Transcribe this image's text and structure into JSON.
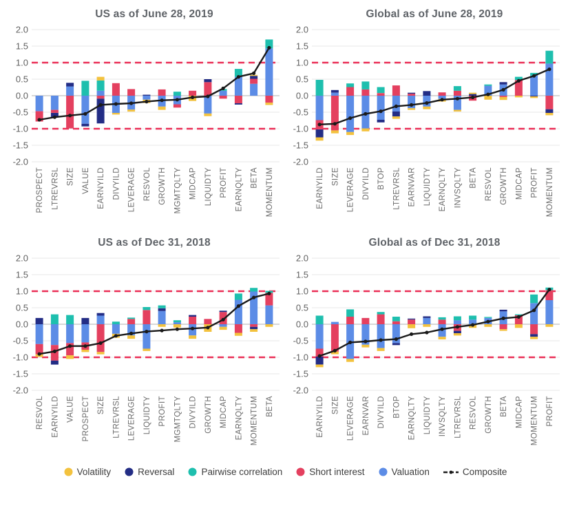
{
  "figure": {
    "background": "#ffffff",
    "grid_color": "#e7e7e7",
    "zero_line_color": "#b0b0b0",
    "ref_line_color": "#ea2d55",
    "title_color": "#5f6368"
  },
  "series_defs": [
    {
      "key": "volatility",
      "name": "Volatility",
      "color": "#f3c23e"
    },
    {
      "key": "reversal",
      "name": "Reversal",
      "color": "#232d85"
    },
    {
      "key": "pairwise_correlation",
      "name": "Pairwise correlation",
      "color": "#1ebfae"
    },
    {
      "key": "short_interest",
      "name": "Short interest",
      "color": "#e4405f"
    },
    {
      "key": "valuation",
      "name": "Valuation",
      "color": "#5c8ce6"
    }
  ],
  "composite_def": {
    "key": "composite",
    "name": "Composite",
    "color": "#1a1a1a",
    "style": "line-with-dots"
  },
  "stack_order": [
    "valuation",
    "short_interest",
    "reversal",
    "pairwise_correlation",
    "volatility"
  ],
  "chart_data": [
    {
      "type": "bar",
      "subtype": "stacked-bars-with-composite-line",
      "title": "US as of June 28, 2019",
      "ylim": [
        -2,
        2
      ],
      "yticks": [
        2,
        1.5,
        1,
        0.5,
        0,
        -0.5,
        -1,
        -1.5,
        -2
      ],
      "ref_lines": [
        1,
        -1
      ],
      "grid": true,
      "categories": [
        "PROSPECT",
        "LTREVRSL",
        "SIZE",
        "VALUE",
        "EARNYILD",
        "DIVYILD",
        "LEVERAGE",
        "RESVOL",
        "GROWTH",
        "MGMTQLTY",
        "MIDCAP",
        "LIQUIDTY",
        "PROFIT",
        "EARNQLTY",
        "BETA",
        "MOMENTUM"
      ],
      "values": {
        "volatility": [
          0,
          0,
          0,
          0,
          0.11,
          -0.05,
          -0.06,
          -0.1,
          -0.1,
          0,
          -0.16,
          -0.08,
          0,
          0,
          0.03,
          -0.07
        ],
        "reversal": [
          0,
          -0.12,
          0.11,
          -0.08,
          -0.75,
          0,
          0,
          0.03,
          0,
          0,
          0,
          0.09,
          0,
          -0.04,
          0.09,
          0
        ],
        "pairwise_correlation": [
          0,
          0,
          0,
          0.45,
          0.31,
          0,
          0,
          0,
          0,
          0.12,
          0,
          0,
          0.05,
          0.24,
          0,
          0.27
        ],
        "short_interest": [
          -0.31,
          -0.09,
          -0.99,
          0,
          -0.09,
          0.38,
          0.2,
          0,
          0.19,
          -0.1,
          0.15,
          0.41,
          -0.09,
          -0.23,
          0.15,
          -0.21
        ],
        "valuation": [
          -0.47,
          -0.43,
          0.28,
          -0.85,
          0.15,
          -0.52,
          -0.42,
          -0.12,
          -0.33,
          -0.26,
          0,
          -0.54,
          0.15,
          0.57,
          0.36,
          1.43
        ]
      },
      "composite": [
        -0.73,
        -0.65,
        -0.6,
        -0.55,
        -0.28,
        -0.25,
        -0.23,
        -0.18,
        -0.14,
        -0.12,
        -0.05,
        -0.02,
        0.22,
        0.57,
        0.68,
        1.45
      ]
    },
    {
      "type": "bar",
      "subtype": "stacked-bars-with-composite-line",
      "title": "Global as of June 28, 2019",
      "ylim": [
        -2,
        2
      ],
      "yticks": [
        2,
        1.5,
        1,
        0.5,
        0,
        -0.5,
        -1,
        -1.5,
        -2
      ],
      "ref_lines": [
        1,
        -1
      ],
      "grid": true,
      "categories": [
        "EARNYILD",
        "SIZE",
        "LEVERAGE",
        "DIVYILD",
        "BTOP",
        "LTREVRSL",
        "EARNVAR",
        "LIQUIDTY",
        "EARNQLTY",
        "INVSQLTY",
        "BETA",
        "RESVOL",
        "GROWTH",
        "MIDCAP",
        "PROFIT",
        "MOMENTUM"
      ],
      "values": {
        "volatility": [
          -0.1,
          -0.09,
          -0.09,
          -0.09,
          0,
          -0.07,
          -0.05,
          -0.08,
          -0.08,
          -0.05,
          0.04,
          -0.12,
          -0.09,
          -0.05,
          -0.05,
          -0.07
        ],
        "reversal": [
          -0.24,
          0.08,
          0,
          0,
          -0.08,
          -0.15,
          0.03,
          0.14,
          0,
          0,
          0.05,
          0,
          0.07,
          0,
          -0.02,
          -0.11
        ],
        "pairwise_correlation": [
          0.48,
          0,
          0.11,
          0.24,
          0.18,
          0,
          0,
          0,
          0,
          0.14,
          0,
          0.04,
          0,
          0.1,
          0.08,
          0.39
        ],
        "short_interest": [
          -0.28,
          -1.05,
          0.26,
          0.19,
          0.08,
          0.31,
          0.06,
          0,
          0.1,
          0.15,
          -0.15,
          0,
          -0.04,
          0.47,
          0,
          -0.41
        ],
        "valuation": [
          -0.74,
          0.09,
          -1.1,
          -0.99,
          -0.73,
          -0.48,
          -0.38,
          -0.33,
          -0.1,
          -0.43,
          0,
          0.3,
          0.34,
          0,
          0.61,
          0.97
        ]
      },
      "composite": [
        -0.87,
        -0.85,
        -0.68,
        -0.55,
        -0.47,
        -0.32,
        -0.28,
        -0.22,
        -0.12,
        -0.09,
        -0.05,
        0.04,
        0.18,
        0.45,
        0.6,
        0.8
      ]
    },
    {
      "type": "bar",
      "subtype": "stacked-bars-with-composite-line",
      "title": "US as of Dec 31, 2018",
      "ylim": [
        -2,
        2
      ],
      "yticks": [
        2,
        1.5,
        1,
        0.5,
        0,
        -0.5,
        -1,
        -1.5,
        -2
      ],
      "ref_lines": [
        1,
        -1
      ],
      "grid": true,
      "categories": [
        "RESVOL",
        "EARNYILD",
        "VALUE",
        "PROSPECT",
        "SIZE",
        "LTREVRSL",
        "LEVERAGE",
        "LIQUIDTY",
        "PROFIT",
        "MGMTQLTY",
        "DIVYILD",
        "GROWTH",
        "MIDCAP",
        "EARNQLTY",
        "MOMENTUM",
        "BETA"
      ],
      "values": {
        "volatility": [
          -0.08,
          0,
          -0.11,
          -0.07,
          -0.07,
          -0.12,
          -0.1,
          -0.07,
          -0.08,
          -0.1,
          -0.1,
          -0.23,
          -0.09,
          -0.09,
          -0.08,
          -0.08
        ],
        "reversal": [
          0.19,
          -0.12,
          0,
          0.19,
          0.08,
          0,
          0,
          0,
          0.08,
          0,
          0.05,
          0,
          0.04,
          0,
          -0.07,
          0
        ],
        "pairwise_correlation": [
          0,
          0.3,
          0.28,
          0,
          0,
          0.08,
          0.04,
          0.09,
          0.09,
          0.06,
          0,
          0,
          0,
          0.19,
          0.11,
          0.06
        ],
        "short_interest": [
          -0.31,
          -0.47,
          -0.37,
          -0.22,
          -0.84,
          0,
          0.16,
          0.43,
          0,
          0,
          0.23,
          0.16,
          0.37,
          -0.26,
          -0.08,
          0.38
        ],
        "valuation": [
          -0.6,
          -0.63,
          -0.57,
          -0.55,
          0.26,
          -0.29,
          -0.34,
          -0.74,
          0.4,
          0.06,
          -0.34,
          0,
          -0.08,
          0.74,
          0.99,
          0.57
        ]
      },
      "composite": [
        -0.9,
        -0.82,
        -0.66,
        -0.66,
        -0.57,
        -0.35,
        -0.28,
        -0.22,
        -0.19,
        -0.15,
        -0.13,
        -0.1,
        0.14,
        0.55,
        0.81,
        0.93
      ]
    },
    {
      "type": "bar",
      "subtype": "stacked-bars-with-composite-line",
      "title": "Global as of Dec 31, 2018",
      "ylim": [
        -2,
        2
      ],
      "yticks": [
        2,
        1.5,
        1,
        0.5,
        0,
        -0.5,
        -1,
        -1.5,
        -2
      ],
      "ref_lines": [
        1,
        -1
      ],
      "grid": true,
      "categories": [
        "EARNYILD",
        "SIZE",
        "LEVERAGE",
        "EARNVAR",
        "DIVYILD",
        "BTOP",
        "EARNQLTY",
        "LIQUIDTY",
        "INVSQLTY",
        "LTREVRSL",
        "RESVOL",
        "GROWTH",
        "BETA",
        "MIDCAP",
        "MOMENTUM",
        "PROFIT"
      ],
      "values": {
        "volatility": [
          -0.08,
          -0.08,
          -0.09,
          -0.08,
          -0.09,
          0,
          -0.12,
          -0.08,
          -0.08,
          -0.07,
          -0.11,
          -0.08,
          -0.05,
          -0.11,
          -0.07,
          -0.08
        ],
        "reversal": [
          -0.24,
          0,
          0,
          0,
          0,
          -0.06,
          0.03,
          0.05,
          0,
          -0.07,
          0,
          0,
          0.05,
          0,
          -0.08,
          0
        ],
        "pairwise_correlation": [
          0.26,
          0,
          0.22,
          0,
          0.07,
          0.14,
          0,
          0,
          0.07,
          0.12,
          0.12,
          0.03,
          0,
          0.03,
          0.26,
          0.08
        ],
        "short_interest": [
          -0.24,
          -0.83,
          0.23,
          0.19,
          0.3,
          0.09,
          0.14,
          0,
          0.14,
          -0.2,
          0,
          0,
          -0.15,
          0.27,
          -0.3,
          0.3
        ],
        "valuation": [
          -0.74,
          0.07,
          -1.05,
          -0.62,
          -0.72,
          -0.57,
          0,
          0.19,
          -0.38,
          0.12,
          0.14,
          0.19,
          0.39,
          0,
          0.64,
          0.73
        ]
      },
      "composite": [
        -0.96,
        -0.8,
        -0.55,
        -0.52,
        -0.48,
        -0.45,
        -0.3,
        -0.25,
        -0.15,
        -0.08,
        -0.02,
        0.08,
        0.18,
        0.22,
        0.42,
        1.05
      ]
    }
  ]
}
